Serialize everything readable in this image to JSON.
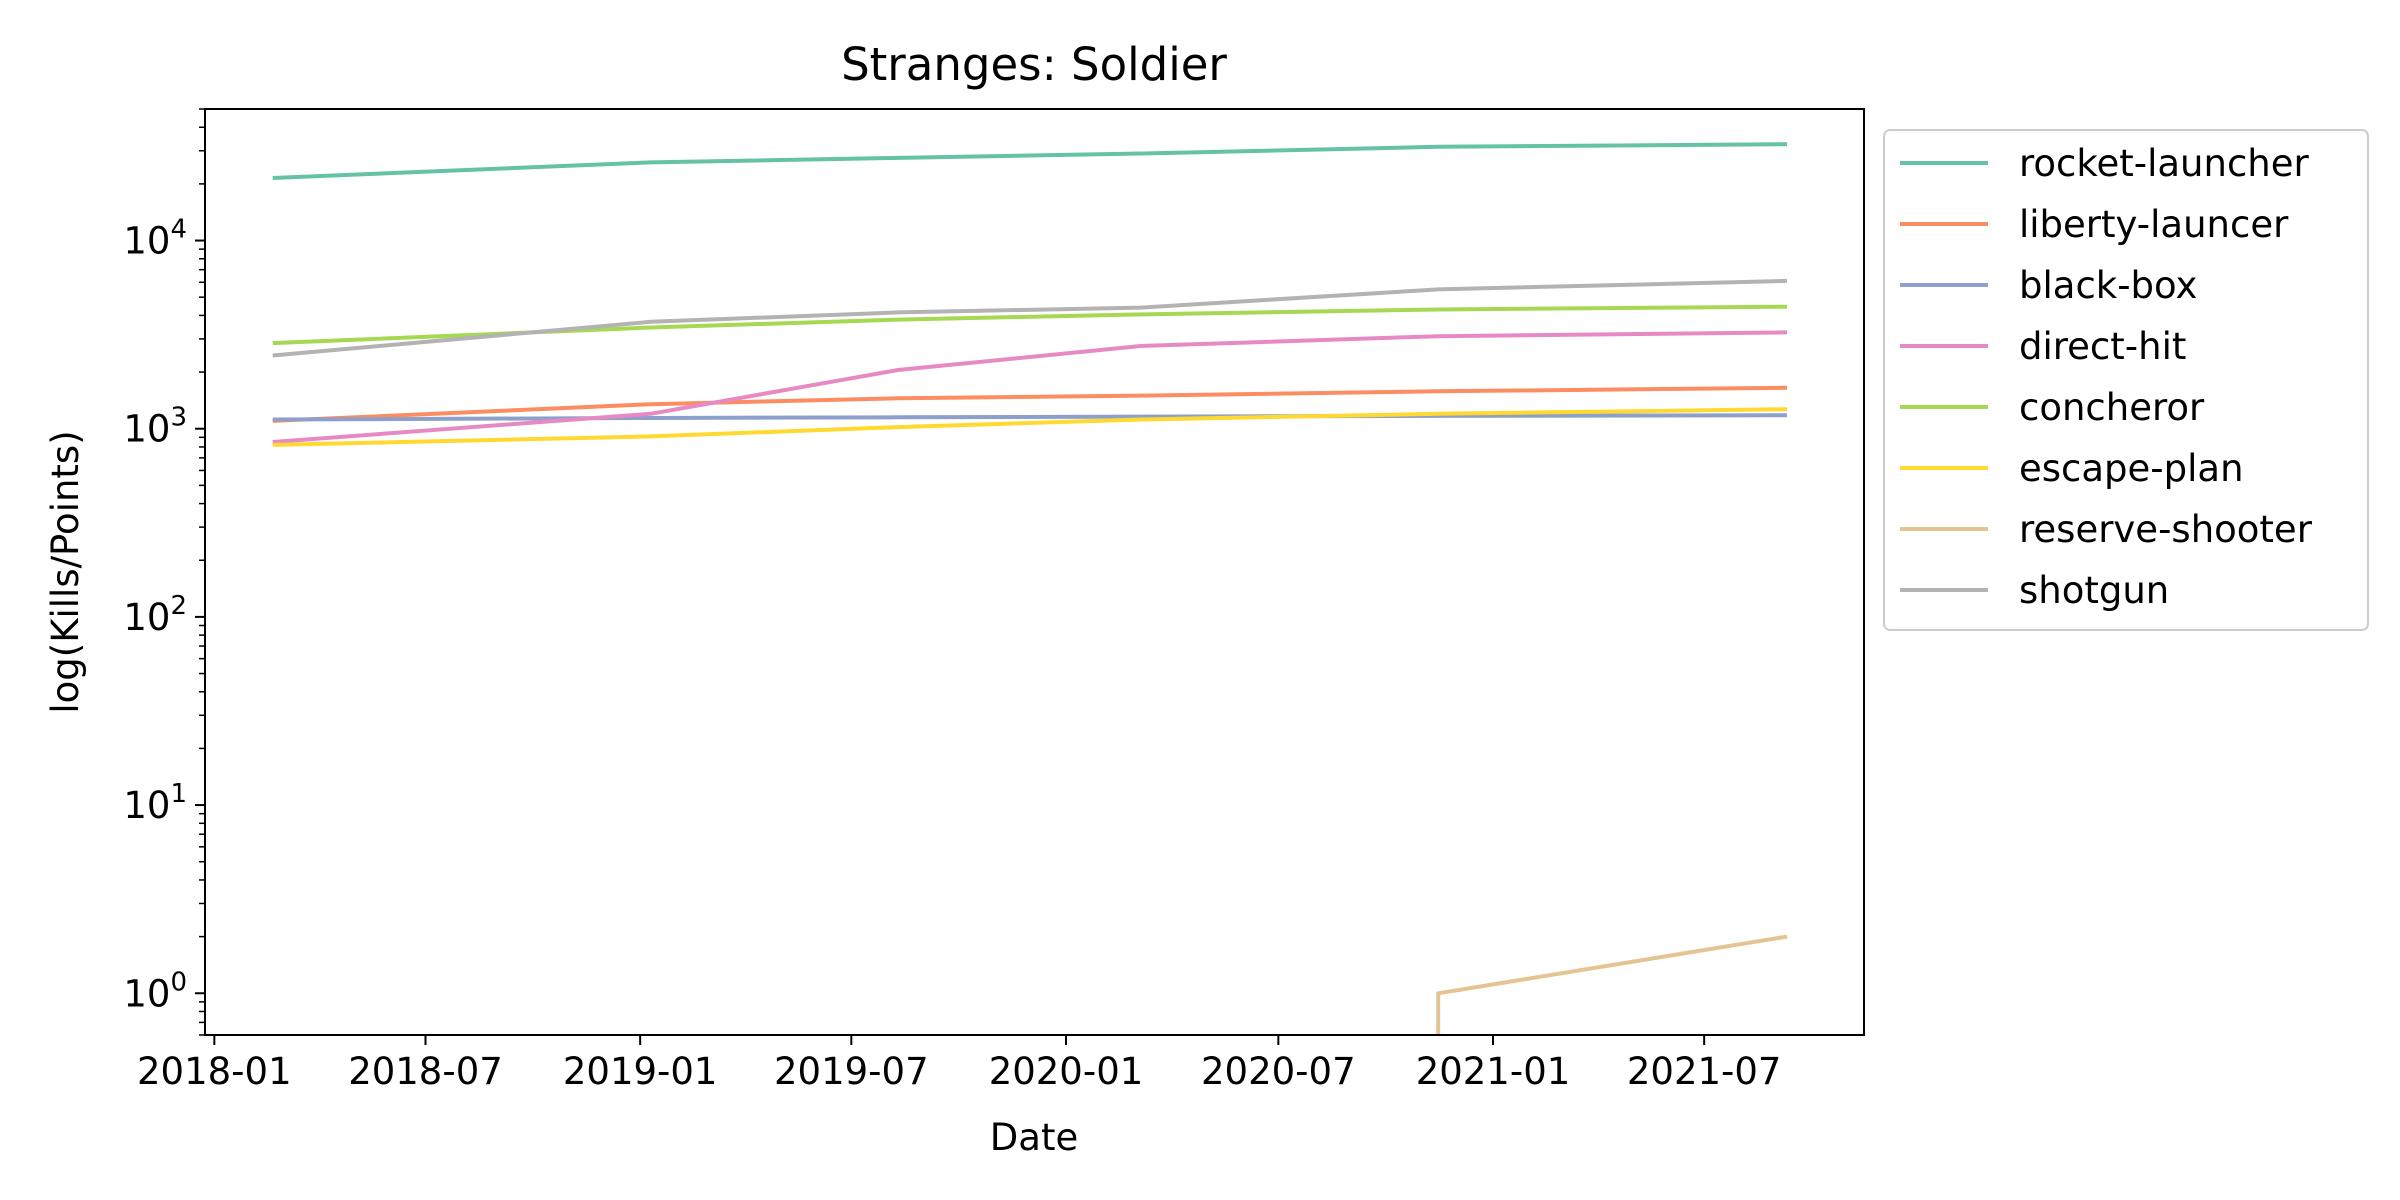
{
  "chart_data": {
    "type": "line",
    "title": "Stranges: Soldier",
    "xlabel": "Date",
    "ylabel": "log(Kills/Points)",
    "yscale": "log",
    "ylim": [
      0.6,
      50000
    ],
    "xlim": [
      "2017-12-24",
      "2021-11-15"
    ],
    "grid": false,
    "legend": "outside-right",
    "x_ticks": [
      "2018-01",
      "2018-07",
      "2019-01",
      "2019-07",
      "2020-01",
      "2020-07",
      "2021-01",
      "2021-07"
    ],
    "y_ticks": [
      {
        "value": 1,
        "base": "10",
        "exp": "0"
      },
      {
        "value": 10,
        "base": "10",
        "exp": "1"
      },
      {
        "value": 100,
        "base": "10",
        "exp": "2"
      },
      {
        "value": 1000,
        "base": "10",
        "exp": "3"
      },
      {
        "value": 10000,
        "base": "10",
        "exp": "4"
      }
    ],
    "series": [
      {
        "name": "rocket-launcher",
        "color": "#66c2a5",
        "points": [
          {
            "x": "2018-02-20",
            "y": 21500
          },
          {
            "x": "2019-01-10",
            "y": 26000
          },
          {
            "x": "2019-08-10",
            "y": 27500
          },
          {
            "x": "2020-03-05",
            "y": 29000
          },
          {
            "x": "2020-11-15",
            "y": 31500
          },
          {
            "x": "2021-09-10",
            "y": 32500
          }
        ]
      },
      {
        "name": "liberty-launcer",
        "color": "#fc8d62",
        "points": [
          {
            "x": "2018-02-20",
            "y": 1100
          },
          {
            "x": "2019-01-10",
            "y": 1350
          },
          {
            "x": "2019-08-10",
            "y": 1450
          },
          {
            "x": "2020-03-05",
            "y": 1500
          },
          {
            "x": "2020-11-15",
            "y": 1580
          },
          {
            "x": "2021-09-10",
            "y": 1650
          }
        ]
      },
      {
        "name": "black-box",
        "color": "#8da0cb",
        "points": [
          {
            "x": "2018-02-20",
            "y": 1120
          },
          {
            "x": "2019-01-10",
            "y": 1140
          },
          {
            "x": "2019-08-10",
            "y": 1150
          },
          {
            "x": "2020-03-05",
            "y": 1160
          },
          {
            "x": "2020-11-15",
            "y": 1170
          },
          {
            "x": "2021-09-10",
            "y": 1180
          }
        ]
      },
      {
        "name": "direct-hit",
        "color": "#e78ac3",
        "points": [
          {
            "x": "2018-02-20",
            "y": 850
          },
          {
            "x": "2019-01-10",
            "y": 1200
          },
          {
            "x": "2019-08-10",
            "y": 2050
          },
          {
            "x": "2020-03-05",
            "y": 2750
          },
          {
            "x": "2020-11-15",
            "y": 3100
          },
          {
            "x": "2021-09-10",
            "y": 3250
          }
        ]
      },
      {
        "name": "concheror",
        "color": "#a6d854",
        "points": [
          {
            "x": "2018-02-20",
            "y": 2850
          },
          {
            "x": "2019-01-10",
            "y": 3450
          },
          {
            "x": "2019-08-10",
            "y": 3800
          },
          {
            "x": "2020-03-05",
            "y": 4050
          },
          {
            "x": "2020-11-15",
            "y": 4300
          },
          {
            "x": "2021-09-10",
            "y": 4450
          }
        ]
      },
      {
        "name": "escape-plan",
        "color": "#ffd92f",
        "points": [
          {
            "x": "2018-02-20",
            "y": 820
          },
          {
            "x": "2019-01-10",
            "y": 910
          },
          {
            "x": "2019-08-10",
            "y": 1020
          },
          {
            "x": "2020-03-05",
            "y": 1120
          },
          {
            "x": "2020-11-15",
            "y": 1200
          },
          {
            "x": "2021-09-10",
            "y": 1270
          }
        ]
      },
      {
        "name": "reserve-shooter",
        "color": "#e5c494",
        "points": [
          {
            "x": "2020-11-15",
            "y": 0.4
          },
          {
            "x": "2020-11-15",
            "y": 1
          },
          {
            "x": "2021-09-10",
            "y": 2
          }
        ]
      },
      {
        "name": "shotgun",
        "color": "#b3b3b3",
        "points": [
          {
            "x": "2018-02-20",
            "y": 2450
          },
          {
            "x": "2019-01-10",
            "y": 3700
          },
          {
            "x": "2019-08-10",
            "y": 4150
          },
          {
            "x": "2020-03-05",
            "y": 4400
          },
          {
            "x": "2020-11-15",
            "y": 5500
          },
          {
            "x": "2021-09-10",
            "y": 6100
          }
        ]
      }
    ]
  }
}
